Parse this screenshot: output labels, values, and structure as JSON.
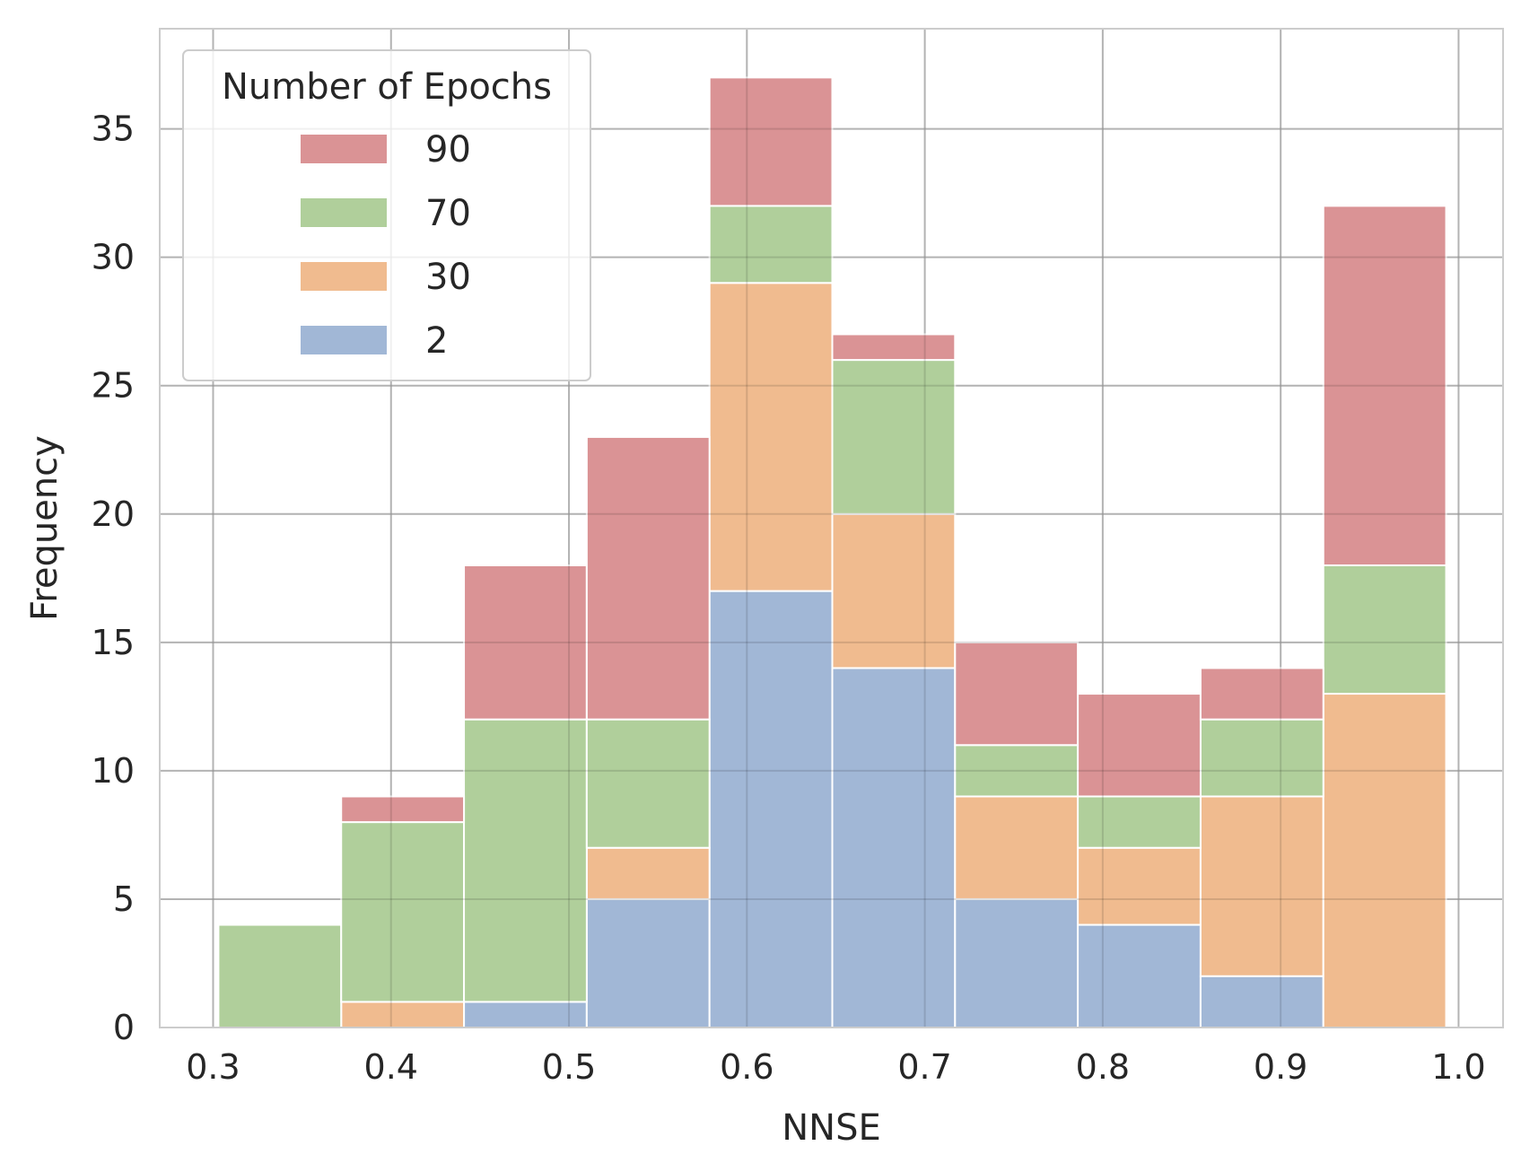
{
  "chart_data": {
    "type": "bar",
    "subtype": "stacked-histogram",
    "title": "",
    "xlabel": "NNSE",
    "ylabel": "Frequency",
    "xlim": [
      0.27,
      1.025
    ],
    "ylim": [
      0,
      38.9
    ],
    "xticks": [
      0.3,
      0.4,
      0.5,
      0.6,
      0.7,
      0.8,
      0.9,
      1.0
    ],
    "xtick_labels": [
      "0.3",
      "0.4",
      "0.5",
      "0.6",
      "0.7",
      "0.8",
      "0.9",
      "1.0"
    ],
    "yticks": [
      0,
      5,
      10,
      15,
      20,
      25,
      30,
      35
    ],
    "ytick_labels": [
      "0",
      "5",
      "10",
      "15",
      "20",
      "25",
      "30",
      "35"
    ],
    "grid": true,
    "legend": {
      "title": "Number of Epochs",
      "placement": "top-left",
      "entries": [
        "90",
        "70",
        "30",
        "2"
      ]
    },
    "bin_edges": [
      0.303,
      0.372,
      0.441,
      0.51,
      0.579,
      0.648,
      0.717,
      0.786,
      0.855,
      0.924,
      0.993
    ],
    "series": [
      {
        "name": "2",
        "color": "#a1b7d6",
        "values": [
          0,
          0,
          1,
          5,
          17,
          14,
          5,
          4,
          2,
          0
        ]
      },
      {
        "name": "30",
        "color": "#f0bb8f",
        "values": [
          0,
          1,
          0,
          2,
          12,
          6,
          4,
          3,
          7,
          13
        ]
      },
      {
        "name": "70",
        "color": "#b0cf9b",
        "values": [
          4,
          7,
          11,
          5,
          3,
          6,
          2,
          2,
          3,
          5
        ]
      },
      {
        "name": "90",
        "color": "#da9395",
        "values": [
          0,
          1,
          6,
          11,
          5,
          1,
          4,
          4,
          2,
          14
        ]
      }
    ]
  }
}
